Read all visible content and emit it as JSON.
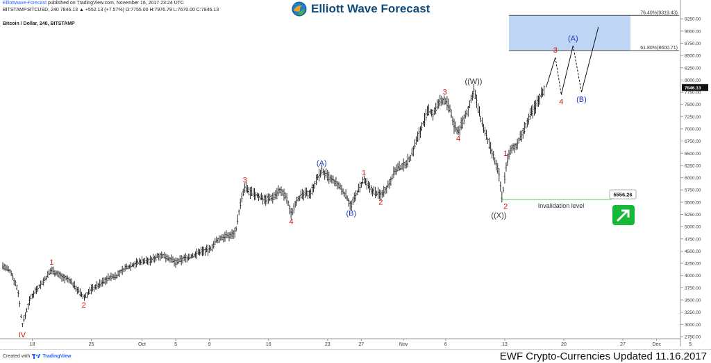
{
  "header": {
    "author": "Elliottwave-Forecast",
    "published": " published on TradingView.com, November 16, 2017 23:24 UTC",
    "quote": "BITSTAMP:BTCUSD, 240  7846.13  ▲ +552.13 (+7.57%) O:7755.00 H:7976.79 L:7670.00 C:7846.13",
    "symbol": "Bitcoin / Dollar, 240, BITSTAMP"
  },
  "brand": {
    "title": "Elliott Wave Forecast"
  },
  "footer": {
    "created_with": "Created with",
    "tradingview": "TradingView",
    "updated": "EWF Crypto-Currencies Updated 11.16.2017"
  },
  "colors": {
    "accent": "#0e4c7e",
    "wave_red": "#d01010",
    "wave_blue": "#1a35c8",
    "wave_dark": "#333333",
    "zone": "#a8c8f0",
    "invalidation": "#5ec85e",
    "up_arrow": "#16b838"
  },
  "chart_data": {
    "type": "bar",
    "title": "Bitcoin / Dollar, 240, BITSTAMP",
    "y_ticks": [
      2750,
      3000,
      3250,
      3500,
      3750,
      4000,
      4250,
      4500,
      4750,
      5000,
      5250,
      5500,
      5750,
      6000,
      6250,
      6500,
      6750,
      7000,
      7250,
      7500,
      7750,
      8000,
      8250,
      8500,
      8750,
      9000,
      9250
    ],
    "y_tick_labels": [
      "2750.00",
      "3000.00",
      "3250.00",
      "3500.00",
      "3750.00",
      "4000.00",
      "4250.00",
      "4500.00",
      "4750.00",
      "5000.00",
      "5250.00",
      "5500.00",
      "5750.00",
      "6000.00",
      "6250.00",
      "6500.00",
      "6750.00",
      "7000.00",
      "7250.00",
      "7500.00",
      "7750.00",
      "8000.00",
      "8250.00",
      "8500.00",
      "8750.00",
      "9000.00",
      "9250.00"
    ],
    "ylim": [
      2650,
      9380
    ],
    "x_range_days": [
      0,
      80
    ],
    "x_ticks": [
      {
        "day": 3.5,
        "label": "18"
      },
      {
        "day": 10.5,
        "label": "25"
      },
      {
        "day": 16.5,
        "label": "Oct"
      },
      {
        "day": 20.5,
        "label": "5"
      },
      {
        "day": 24.5,
        "label": "9"
      },
      {
        "day": 31.5,
        "label": "16"
      },
      {
        "day": 38.5,
        "label": "23"
      },
      {
        "day": 42.5,
        "label": "27"
      },
      {
        "day": 47.5,
        "label": "Nov"
      },
      {
        "day": 52.5,
        "label": "6"
      },
      {
        "day": 59.5,
        "label": "13"
      },
      {
        "day": 66.5,
        "label": "20"
      },
      {
        "day": 73.5,
        "label": "27"
      },
      {
        "day": 77.5,
        "label": "Dec"
      },
      {
        "day": 81.5,
        "label": "5"
      }
    ],
    "price_path": [
      [
        0,
        4200
      ],
      [
        1,
        4060
      ],
      [
        1.8,
        3700
      ],
      [
        2.3,
        2980
      ],
      [
        3.2,
        3500
      ],
      [
        3.8,
        3680
      ],
      [
        5,
        3920
      ],
      [
        5.8,
        4120
      ],
      [
        6.8,
        4000
      ],
      [
        8,
        3890
      ],
      [
        9,
        3680
      ],
      [
        9.6,
        3540
      ],
      [
        10.5,
        3720
      ],
      [
        11.5,
        3820
      ],
      [
        12.5,
        3950
      ],
      [
        13.5,
        4000
      ],
      [
        14.5,
        4150
      ],
      [
        15.5,
        4230
      ],
      [
        16.5,
        4300
      ],
      [
        17.5,
        4300
      ],
      [
        18.5,
        4420
      ],
      [
        19.5,
        4380
      ],
      [
        20.5,
        4260
      ],
      [
        21.5,
        4350
      ],
      [
        22.5,
        4400
      ],
      [
        23.5,
        4500
      ],
      [
        24.5,
        4520
      ],
      [
        25.3,
        4700
      ],
      [
        26.2,
        4800
      ],
      [
        27,
        4820
      ],
      [
        27.6,
        4900
      ],
      [
        28.2,
        5500
      ],
      [
        28.7,
        5800
      ],
      [
        29.3,
        5700
      ],
      [
        30.3,
        5620
      ],
      [
        31.2,
        5560
      ],
      [
        32,
        5600
      ],
      [
        32.8,
        5750
      ],
      [
        33.6,
        5600
      ],
      [
        34.2,
        5250
      ],
      [
        34.8,
        5550
      ],
      [
        35.6,
        5650
      ],
      [
        36.5,
        5700
      ],
      [
        37.2,
        5950
      ],
      [
        37.8,
        6150
      ],
      [
        38.6,
        6000
      ],
      [
        39.4,
        5900
      ],
      [
        40,
        5800
      ],
      [
        40.8,
        5600
      ],
      [
        41.3,
        5420
      ],
      [
        42,
        5700
      ],
      [
        42.8,
        5950
      ],
      [
        43.4,
        5800
      ],
      [
        44.1,
        5700
      ],
      [
        44.8,
        5650
      ],
      [
        45.6,
        5820
      ],
      [
        46.5,
        6150
      ],
      [
        47.5,
        6250
      ],
      [
        48.3,
        6400
      ],
      [
        49,
        6750
      ],
      [
        49.8,
        7100
      ],
      [
        50.5,
        7380
      ],
      [
        51,
        7300
      ],
      [
        51.8,
        7550
      ],
      [
        52.4,
        7600
      ],
      [
        53,
        7400
      ],
      [
        53.5,
        7050
      ],
      [
        54,
        6950
      ],
      [
        54.8,
        7250
      ],
      [
        55.4,
        7500
      ],
      [
        55.8,
        7820
      ],
      [
        56.5,
        7300
      ],
      [
        57.3,
        6850
      ],
      [
        57.9,
        6550
      ],
      [
        58.3,
        6350
      ],
      [
        58.8,
        6100
      ],
      [
        59.2,
        5560
      ],
      [
        59.7,
        6300
      ],
      [
        60.2,
        6550
      ],
      [
        61,
        6700
      ],
      [
        61.6,
        6900
      ],
      [
        62.2,
        7150
      ],
      [
        62.6,
        7300
      ],
      [
        63.2,
        7480
      ],
      [
        63.8,
        7700
      ],
      [
        64.3,
        7846
      ]
    ],
    "invalidation": {
      "value": 5556.26,
      "label": "5556.26",
      "text": "Invalidation level"
    },
    "target_zone": {
      "low": 8600.71,
      "high": 9319.43,
      "low_label": "61.80%(8600.71)",
      "high_label": "76.40%(9319.43)"
    },
    "last_price": {
      "value": 7846.13,
      "label": "7846.13"
    },
    "projection_path": [
      [
        64.4,
        7846
      ],
      [
        65.5,
        8460
      ],
      [
        66.2,
        7700
      ],
      [
        67.6,
        8700
      ],
      [
        68.6,
        7750
      ],
      [
        70.6,
        9080
      ]
    ],
    "wave_labels": [
      {
        "text": "IV",
        "day": 2.3,
        "y": 2930,
        "color": "red",
        "pos": "below"
      },
      {
        "text": "1",
        "day": 5.8,
        "y": 4120,
        "color": "red",
        "pos": "above"
      },
      {
        "text": "2",
        "day": 9.6,
        "y": 3540,
        "color": "red",
        "pos": "below"
      },
      {
        "text": "3",
        "day": 28.7,
        "y": 5800,
        "color": "red",
        "pos": "above"
      },
      {
        "text": "4",
        "day": 34.2,
        "y": 5250,
        "color": "red",
        "pos": "below"
      },
      {
        "text": "(A)",
        "day": 37.8,
        "y": 6150,
        "color": "blue",
        "pos": "above"
      },
      {
        "text": "(B)",
        "day": 41.3,
        "y": 5420,
        "color": "blue",
        "pos": "below"
      },
      {
        "text": "1",
        "day": 42.8,
        "y": 5950,
        "color": "red",
        "pos": "above"
      },
      {
        "text": "2",
        "day": 44.8,
        "y": 5650,
        "color": "red",
        "pos": "below"
      },
      {
        "text": "3",
        "day": 52.4,
        "y": 7600,
        "color": "red",
        "pos": "above"
      },
      {
        "text": "4",
        "day": 54,
        "y": 6950,
        "color": "red",
        "pos": "below"
      },
      {
        "text": "((W))",
        "day": 55.8,
        "y": 7820,
        "color": "dark",
        "pos": "above"
      },
      {
        "text": "1",
        "day": 59.6,
        "y": 6350,
        "color": "red",
        "pos": "above"
      },
      {
        "text": "2",
        "day": 59.6,
        "y": 5560,
        "color": "red",
        "pos": "below"
      },
      {
        "text": "((X))",
        "day": 58.8,
        "y": 5380,
        "color": "dark",
        "pos": "below"
      },
      {
        "text": "3",
        "day": 65.5,
        "y": 8460,
        "color": "red",
        "pos": "above"
      },
      {
        "text": "4",
        "day": 66.2,
        "y": 7700,
        "color": "red",
        "pos": "below"
      },
      {
        "text": "(A)",
        "day": 67.6,
        "y": 8700,
        "color": "blue",
        "pos": "above"
      },
      {
        "text": "(B)",
        "day": 68.6,
        "y": 7750,
        "color": "blue",
        "pos": "below"
      }
    ]
  }
}
